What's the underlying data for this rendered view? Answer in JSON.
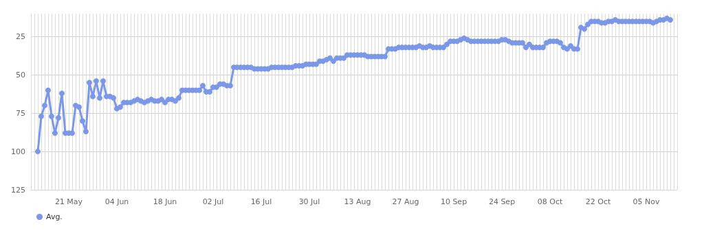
{
  "chart_data": {
    "type": "line",
    "x": [
      "--05-12",
      "--05-13",
      "--05-14",
      "--05-15",
      "--05-16",
      "--05-17",
      "--05-18",
      "--05-19",
      "--05-20",
      "--05-21",
      "--05-22",
      "--05-23",
      "--05-24",
      "--05-25",
      "--05-26",
      "--05-27",
      "--05-28",
      "--05-29",
      "--05-30",
      "--05-31",
      "--06-01",
      "--06-02",
      "--06-03",
      "--06-04",
      "--06-05",
      "--06-06",
      "--06-07",
      "--06-08",
      "--06-09",
      "--06-10",
      "--06-11",
      "--06-12",
      "--06-13",
      "--06-14",
      "--06-15",
      "--06-16",
      "--06-17",
      "--06-18",
      "--06-19",
      "--06-20",
      "--06-21",
      "--06-22",
      "--06-23",
      "--06-24",
      "--06-25",
      "--06-26",
      "--06-27",
      "--06-28",
      "--06-29",
      "--06-30",
      "--07-01",
      "--07-02",
      "--07-03",
      "--07-04",
      "--07-05",
      "--07-06",
      "--07-07",
      "--07-08",
      "--07-09",
      "--07-10",
      "--07-11",
      "--07-12",
      "--07-13",
      "--07-14",
      "--07-15",
      "--07-16",
      "--07-17",
      "--07-18",
      "--07-19",
      "--07-20",
      "--07-21",
      "--07-22",
      "--07-23",
      "--07-24",
      "--07-25",
      "--07-26",
      "--07-27",
      "--07-28",
      "--07-29",
      "--07-30",
      "--07-31",
      "--08-01",
      "--08-02",
      "--08-03",
      "--08-04",
      "--08-05",
      "--08-06",
      "--08-07",
      "--08-08",
      "--08-09",
      "--08-10",
      "--08-11",
      "--08-12",
      "--08-13",
      "--08-14",
      "--08-15",
      "--08-16",
      "--08-17",
      "--08-18",
      "--08-19",
      "--08-20",
      "--08-21",
      "--08-22",
      "--08-23",
      "--08-24",
      "--08-25",
      "--08-26",
      "--08-27",
      "--08-28",
      "--08-29",
      "--08-30",
      "--08-31",
      "--09-01",
      "--09-02",
      "--09-03",
      "--09-04",
      "--09-05",
      "--09-06",
      "--09-07",
      "--09-08",
      "--09-09",
      "--09-10",
      "--09-11",
      "--09-12",
      "--09-13",
      "--09-14",
      "--09-15",
      "--09-16",
      "--09-17",
      "--09-18",
      "--09-19",
      "--09-20",
      "--09-21",
      "--09-22",
      "--09-23",
      "--09-24",
      "--09-25",
      "--09-26",
      "--09-27",
      "--09-28",
      "--09-29",
      "--09-30",
      "--10-01",
      "--10-02",
      "--10-03",
      "--10-04",
      "--10-05",
      "--10-06",
      "--10-07",
      "--10-08",
      "--10-09",
      "--10-10",
      "--10-11",
      "--10-12",
      "--10-13",
      "--10-14",
      "--10-15",
      "--10-16",
      "--10-17",
      "--10-18",
      "--10-19",
      "--10-20",
      "--10-21",
      "--10-22",
      "--10-23",
      "--10-24",
      "--10-25",
      "--10-26",
      "--10-27",
      "--10-28",
      "--10-29",
      "--10-30",
      "--10-31",
      "--11-01",
      "--11-02",
      "--11-03",
      "--11-04",
      "--11-05",
      "--11-06",
      "--11-07",
      "--11-08",
      "--11-09",
      "--11-10",
      "--11-11",
      "--11-12"
    ],
    "series": [
      {
        "name": "Avg.",
        "color": "#7b97e8",
        "values": [
          100,
          77,
          70,
          60,
          77,
          88,
          78,
          62,
          88,
          88,
          88,
          70,
          71,
          80,
          87,
          55,
          64,
          54,
          65,
          54,
          64,
          64,
          65,
          72,
          71,
          68,
          68,
          68,
          67,
          66,
          67,
          68,
          67,
          66,
          67,
          67,
          66,
          68,
          66,
          66,
          67,
          65,
          60,
          60,
          60,
          60,
          60,
          60,
          57,
          61,
          61,
          58,
          58,
          56,
          56,
          57,
          57,
          45,
          45,
          45,
          45,
          45,
          45,
          46,
          46,
          46,
          46,
          46,
          45,
          45,
          45,
          45,
          45,
          45,
          45,
          44,
          44,
          44,
          43,
          43,
          43,
          43,
          41,
          41,
          40,
          39,
          41,
          39,
          39,
          39,
          37,
          37,
          37,
          37,
          37,
          37,
          38,
          38,
          38,
          38,
          38,
          38,
          33,
          33,
          33,
          32,
          32,
          32,
          32,
          32,
          32,
          31,
          32,
          32,
          31,
          32,
          32,
          32,
          32,
          30,
          28,
          28,
          28,
          27,
          26,
          27,
          28,
          28,
          28,
          28,
          28,
          28,
          28,
          28,
          28,
          27,
          27,
          28,
          29,
          29,
          29,
          29,
          32,
          30,
          32,
          32,
          32,
          32,
          29,
          28,
          28,
          28,
          29,
          32,
          33,
          31,
          33,
          33,
          19,
          20,
          17,
          15,
          15,
          15,
          16,
          16,
          15,
          15,
          14,
          15,
          15,
          15,
          15,
          15,
          15,
          15,
          15,
          15,
          15,
          16,
          15,
          14,
          14,
          13,
          14
        ]
      }
    ],
    "xlim": [
      "--05-10",
      "--11-14"
    ],
    "xticks": [
      {
        "value": "--05-21",
        "label": "21 May"
      },
      {
        "value": "--06-04",
        "label": "04 Jun"
      },
      {
        "value": "--06-18",
        "label": "18 Jun"
      },
      {
        "value": "--07-02",
        "label": "02 Jul"
      },
      {
        "value": "--07-16",
        "label": "16 Jul"
      },
      {
        "value": "--07-30",
        "label": "30 Jul"
      },
      {
        "value": "--08-13",
        "label": "13 Aug"
      },
      {
        "value": "--08-27",
        "label": "27 Aug"
      },
      {
        "value": "--09-10",
        "label": "10 Sep"
      },
      {
        "value": "--09-24",
        "label": "24 Sep"
      },
      {
        "value": "--10-08",
        "label": "08 Oct"
      },
      {
        "value": "--10-22",
        "label": "22 Oct"
      },
      {
        "value": "--11-05",
        "label": "05 Nov"
      }
    ],
    "ylim": [
      125,
      10
    ],
    "yticks": [
      25,
      50,
      75,
      100,
      125
    ],
    "grid": true,
    "legend": "bottom left",
    "marker": "circle",
    "line_style": "solid"
  }
}
